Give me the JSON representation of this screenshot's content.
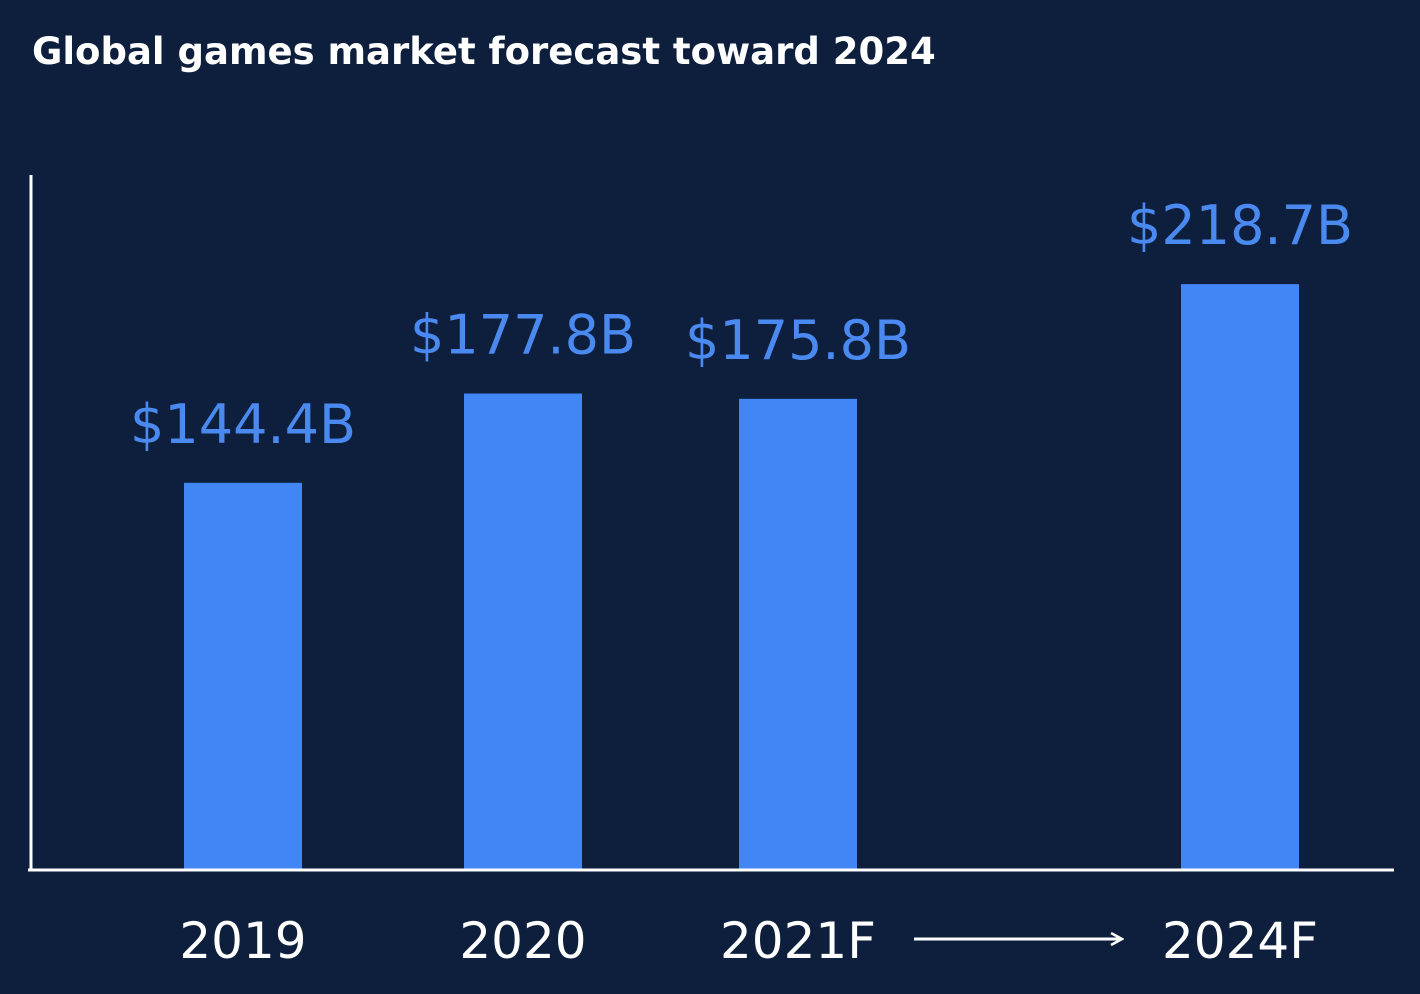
{
  "chart_data": {
    "type": "bar",
    "title": "Global games market forecast toward 2024",
    "categories": [
      "2019",
      "2020",
      "2021F",
      "2024F"
    ],
    "values": [
      144.4,
      177.8,
      175.8,
      218.7
    ],
    "value_labels": [
      "$144.4B",
      "$177.8B",
      "$175.8B",
      "$218.7B"
    ],
    "unit": "USD billions",
    "xlabel": "",
    "ylabel": "",
    "ylim": [
      0,
      258
    ],
    "grid": false,
    "legend": "none",
    "colors": {
      "background": "#0d1f3d",
      "bar": "#4285f4",
      "value_label": "#4a8af0",
      "axis": "#ffffff",
      "text": "#ffffff"
    },
    "annotations": [
      {
        "type": "arrow",
        "from": "2021F",
        "to": "2024F"
      }
    ]
  }
}
